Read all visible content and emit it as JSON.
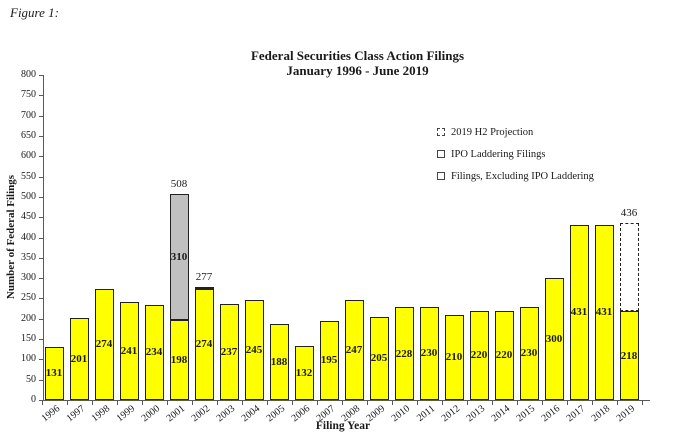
{
  "figure_label": "Figure 1:",
  "colors": {
    "filings_fill": "#FFFF00",
    "ipo_fill": "#C0C0C0",
    "projection_outline": "#222222",
    "axis": "#5A5A5A"
  },
  "chart_data": {
    "type": "bar",
    "stacked": true,
    "title": "Federal Securities Class Action Filings",
    "subtitle": "January 1996 - June 2019",
    "xlabel": "Filing Year",
    "ylabel": "Number of Federal Filings",
    "ylim": [
      0,
      800
    ],
    "ytick_step": 50,
    "grid": false,
    "legend_position": "inside-upper-right",
    "categories": [
      "1996",
      "1997",
      "1998",
      "1999",
      "2000",
      "2001",
      "2002",
      "2003",
      "2004",
      "2005",
      "2006",
      "2007",
      "2008",
      "2009",
      "2010",
      "2011",
      "2012",
      "2013",
      "2014",
      "2015",
      "2016",
      "2017",
      "2018",
      "2019"
    ],
    "series": [
      {
        "name": "Filings, Excluding IPO Laddering",
        "color": "#FFFF00",
        "values": [
          131,
          201,
          274,
          241,
          234,
          198,
          274,
          237,
          245,
          188,
          132,
          195,
          247,
          205,
          228,
          230,
          210,
          220,
          220,
          230,
          300,
          431,
          431,
          218
        ]
      },
      {
        "name": "IPO Laddering Filings",
        "color": "#C0C0C0",
        "values": [
          0,
          0,
          0,
          0,
          0,
          310,
          3,
          0,
          0,
          0,
          0,
          0,
          0,
          0,
          0,
          0,
          0,
          0,
          0,
          0,
          0,
          0,
          0,
          0
        ]
      },
      {
        "name": "2019 H2 Projection",
        "style": "dashed-outline",
        "color": "#FFFFFF",
        "values": [
          0,
          0,
          0,
          0,
          0,
          0,
          0,
          0,
          0,
          0,
          0,
          0,
          0,
          0,
          0,
          0,
          0,
          0,
          0,
          0,
          0,
          0,
          0,
          218
        ]
      }
    ],
    "total_annotations": [
      {
        "category": "2001",
        "label": "508"
      },
      {
        "category": "2002",
        "label": "277"
      },
      {
        "category": "2019",
        "label": "436"
      }
    ]
  },
  "legend": {
    "items": [
      {
        "label": "2019 H2 Projection",
        "swatch": "dashed"
      },
      {
        "label": "IPO Laddering Filings",
        "swatch": "gray"
      },
      {
        "label": "Filings, Excluding IPO Laddering",
        "swatch": "yellow"
      }
    ]
  }
}
